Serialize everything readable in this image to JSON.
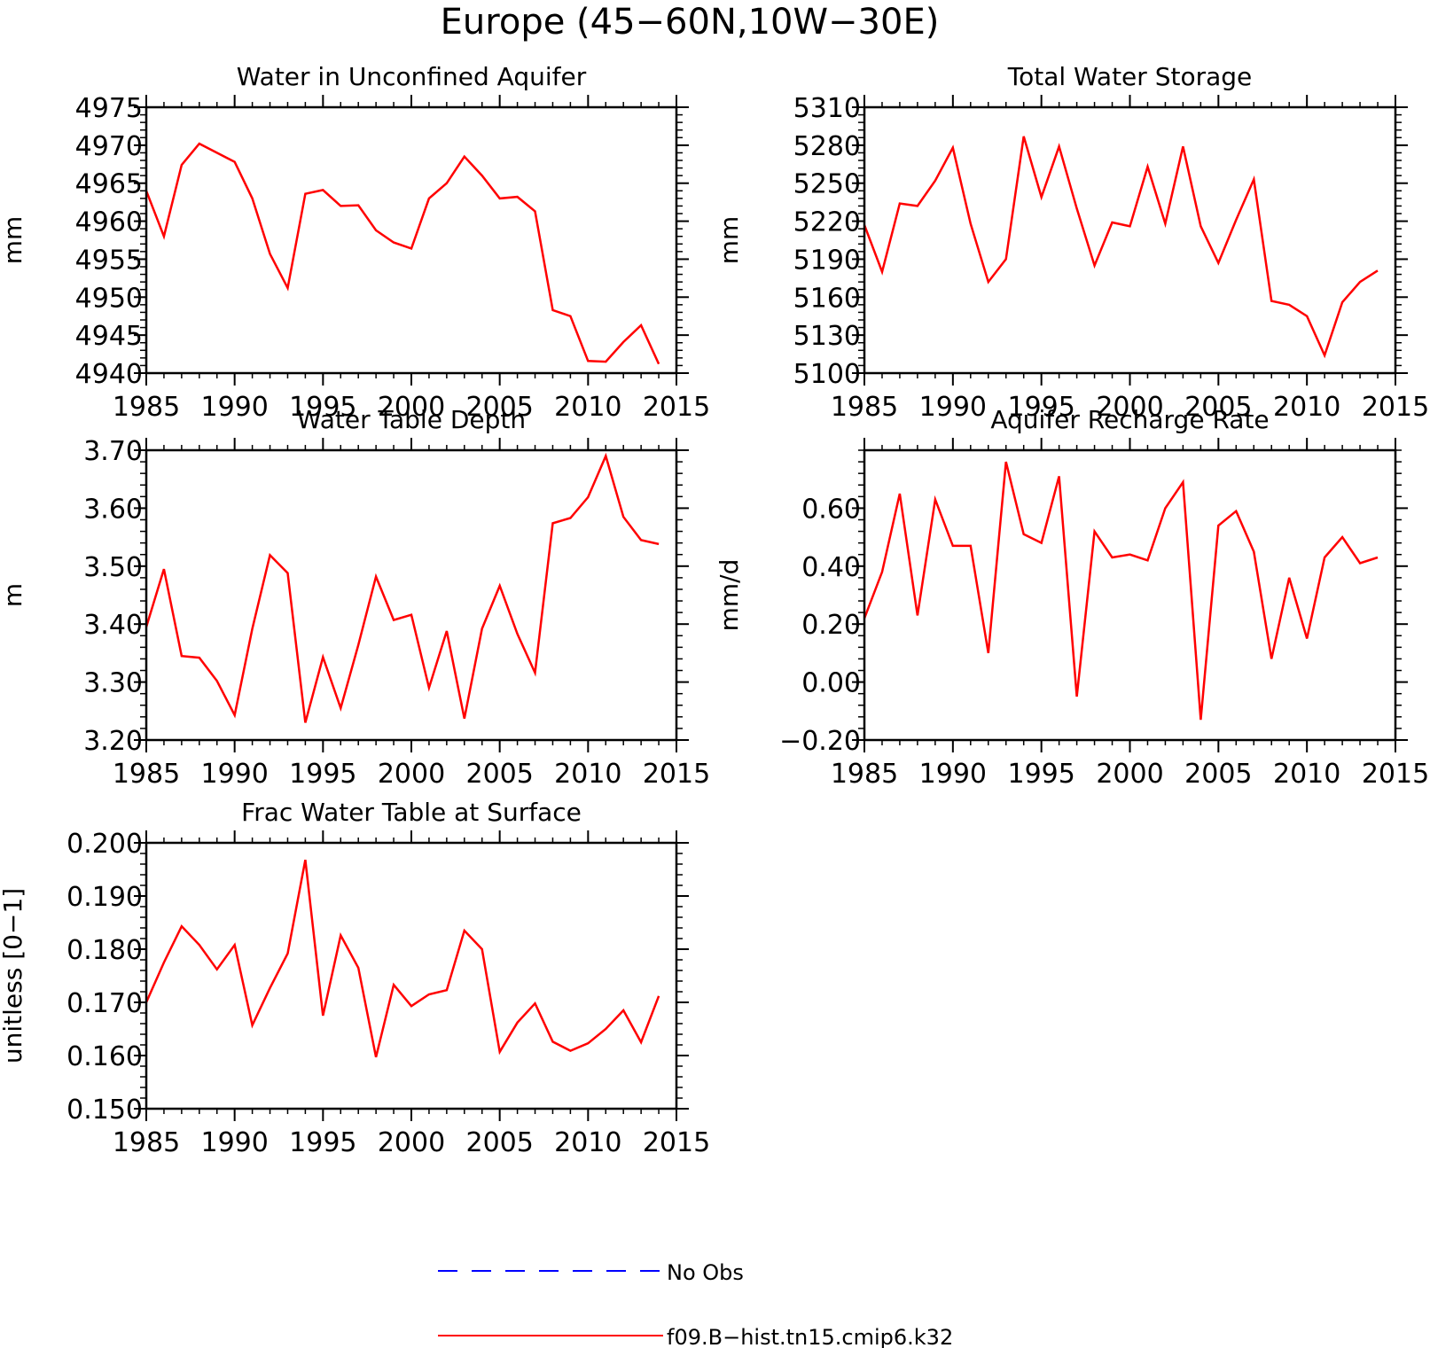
{
  "figure_title": "Europe (45−60N,10W−30E)",
  "legend": [
    {
      "label": "No Obs",
      "color": "#0000ff",
      "style": "dashed"
    },
    {
      "label": "f09.B−hist.tn15.cmip6.k32",
      "color": "#ff0000",
      "style": "solid"
    }
  ],
  "chart_data": [
    {
      "type": "line",
      "title": "Water in Unconfined Aquifer",
      "ylabel": "mm",
      "xlim": [
        1985,
        2015
      ],
      "ylim": [
        4940,
        4975
      ],
      "xticks": [
        "1985",
        "1990",
        "1995",
        "2000",
        "2005",
        "2010",
        "2015"
      ],
      "yticks": [
        "4975",
        "4970",
        "4965",
        "4960",
        "4955",
        "4950",
        "4945",
        "4940"
      ],
      "x": [
        1985,
        1986,
        1987,
        1988,
        1989,
        1990,
        1991,
        1992,
        1993,
        1994,
        1995,
        1996,
        1997,
        1998,
        1999,
        2000,
        2001,
        2002,
        2003,
        2004,
        2005,
        2006,
        2007,
        2008,
        2009,
        2010,
        2011,
        2012,
        2013,
        2014
      ],
      "series": [
        {
          "name": "f09.B−hist.tn15.cmip6.k32",
          "values": [
            4964,
            4958,
            4967.4,
            4970.2,
            4969,
            4967.8,
            4963,
            4955.7,
            4951.2,
            4963.6,
            4964.1,
            4962,
            4962.1,
            4958.8,
            4957.2,
            4956.4,
            4963,
            4965,
            4968.5,
            4966,
            4963,
            4963.2,
            4961.3,
            4948.3,
            4947.5,
            4941.6,
            4941.5,
            4944.1,
            4946.3,
            4941.2
          ]
        }
      ]
    },
    {
      "type": "line",
      "title": "Total Water Storage",
      "ylabel": "mm",
      "xlim": [
        1985,
        2015
      ],
      "ylim": [
        5100,
        5310
      ],
      "xticks": [
        "1985",
        "1990",
        "1995",
        "2000",
        "2005",
        "2010",
        "2015"
      ],
      "yticks": [
        "5310",
        "5280",
        "5250",
        "5220",
        "5190",
        "5160",
        "5130",
        "5100"
      ],
      "x": [
        1985,
        1986,
        1987,
        1988,
        1989,
        1990,
        1991,
        1992,
        1993,
        1994,
        1995,
        1996,
        1997,
        1998,
        1999,
        2000,
        2001,
        2002,
        2003,
        2004,
        2005,
        2006,
        2007,
        2008,
        2009,
        2010,
        2011,
        2012,
        2013,
        2014
      ],
      "series": [
        {
          "name": "f09.B−hist.tn15.cmip6.k32",
          "values": [
            5217,
            5180,
            5234,
            5232,
            5252,
            5278,
            5218,
            5172,
            5190,
            5287,
            5239,
            5279,
            5230,
            5185,
            5219,
            5216,
            5263,
            5218,
            5279,
            5216,
            5187,
            5221,
            5253,
            5157,
            5154,
            5145,
            5114,
            5156,
            5172,
            5181
          ]
        }
      ]
    },
    {
      "type": "line",
      "title": "Water Table Depth",
      "ylabel": "m",
      "xlim": [
        1985,
        2015
      ],
      "ylim": [
        3.2,
        3.7
      ],
      "xticks": [
        "1985",
        "1990",
        "1995",
        "2000",
        "2005",
        "2010",
        "2015"
      ],
      "yticks": [
        "3.70",
        "3.60",
        "3.50",
        "3.40",
        "3.30",
        "3.20"
      ],
      "x": [
        1985,
        1986,
        1987,
        1988,
        1989,
        1990,
        1991,
        1992,
        1993,
        1994,
        1995,
        1996,
        1997,
        1998,
        1999,
        2000,
        2001,
        2002,
        2003,
        2004,
        2005,
        2006,
        2007,
        2008,
        2009,
        2010,
        2011,
        2012,
        2013,
        2014
      ],
      "series": [
        {
          "name": "f09.B−hist.tn15.cmip6.k32",
          "values": [
            3.395,
            3.495,
            3.345,
            3.342,
            3.302,
            3.243,
            3.392,
            3.519,
            3.488,
            3.23,
            3.343,
            3.255,
            3.364,
            3.482,
            3.407,
            3.416,
            3.29,
            3.388,
            3.237,
            3.392,
            3.466,
            3.383,
            3.316,
            3.574,
            3.583,
            3.619,
            3.69,
            3.585,
            3.545,
            3.538
          ]
        }
      ]
    },
    {
      "type": "line",
      "title": "Aquifer Recharge Rate",
      "ylabel": "mm/d",
      "xlim": [
        1985,
        2015
      ],
      "ylim": [
        -0.2,
        0.8
      ],
      "xticks": [
        "1985",
        "1990",
        "1995",
        "2000",
        "2005",
        "2010",
        "2015"
      ],
      "yticks": [
        "0.60",
        "0.40",
        "0.20",
        "0.00",
        "−0.20"
      ],
      "x": [
        1985,
        1986,
        1987,
        1988,
        1989,
        1990,
        1991,
        1992,
        1993,
        1994,
        1995,
        1996,
        1997,
        1998,
        1999,
        2000,
        2001,
        2002,
        2003,
        2004,
        2005,
        2006,
        2007,
        2008,
        2009,
        2010,
        2011,
        2012,
        2013,
        2014
      ],
      "series": [
        {
          "name": "f09.B−hist.tn15.cmip6.k32",
          "values": [
            0.22,
            0.38,
            0.65,
            0.23,
            0.63,
            0.47,
            0.47,
            0.1,
            0.76,
            0.51,
            0.48,
            0.71,
            -0.05,
            0.52,
            0.43,
            0.44,
            0.42,
            0.6,
            0.69,
            -0.13,
            0.54,
            0.59,
            0.45,
            0.08,
            0.36,
            0.15,
            0.43,
            0.5,
            0.41,
            0.43
          ]
        }
      ]
    },
    {
      "type": "line",
      "title": "Frac Water Table at Surface",
      "ylabel": "unitless [0−1]",
      "xlim": [
        1985,
        2015
      ],
      "ylim": [
        0.15,
        0.2
      ],
      "xticks": [
        "1985",
        "1990",
        "1995",
        "2000",
        "2005",
        "2010",
        "2015"
      ],
      "yticks": [
        "0.200",
        "0.190",
        "0.180",
        "0.170",
        "0.160",
        "0.150"
      ],
      "x": [
        1985,
        1986,
        1987,
        1988,
        1989,
        1990,
        1991,
        1992,
        1993,
        1994,
        1995,
        1996,
        1997,
        1998,
        1999,
        2000,
        2001,
        2002,
        2003,
        2004,
        2005,
        2006,
        2007,
        2008,
        2009,
        2010,
        2011,
        2012,
        2013,
        2014
      ],
      "series": [
        {
          "name": "f09.B−hist.tn15.cmip6.k32",
          "values": [
            0.17,
            0.1775,
            0.1843,
            0.1808,
            0.1762,
            0.1808,
            0.1657,
            0.1727,
            0.1792,
            0.1968,
            0.1675,
            0.1826,
            0.1765,
            0.1597,
            0.1733,
            0.1693,
            0.1715,
            0.1723,
            0.1835,
            0.18,
            0.1607,
            0.1662,
            0.1698,
            0.1626,
            0.1609,
            0.1623,
            0.165,
            0.1685,
            0.1625,
            0.1712
          ]
        }
      ]
    }
  ]
}
